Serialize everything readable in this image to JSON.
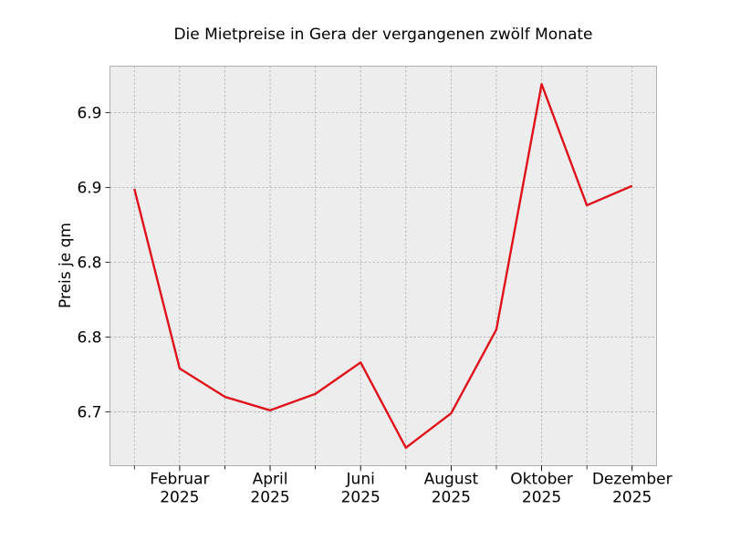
{
  "chart_data": {
    "type": "line",
    "title": "Die Mietpreise in Gera der vergangenen zwölf Monate",
    "xlabel": "",
    "ylabel": "Preis je qm",
    "x": [
      "2025-01",
      "2025-02",
      "2025-03",
      "2025-04",
      "2025-05",
      "2025-06",
      "2025-07",
      "2025-08",
      "2025-09",
      "2025-10",
      "2025-11",
      "2025-12"
    ],
    "series": [
      {
        "values": [
          6.849,
          6.729,
          6.71,
          6.701,
          6.712,
          6.733,
          6.676,
          6.699,
          6.755,
          6.919,
          6.838,
          6.851
        ],
        "color": "#e0111b"
      }
    ],
    "ylim": [
      6.664,
      6.931
    ],
    "yticks": [
      6.7,
      6.75,
      6.8,
      6.85,
      6.9
    ],
    "ytick_labels": [
      "6.7",
      "6.8",
      "6.8",
      "6.9",
      "6.9"
    ],
    "xticks": [
      {
        "x": "2025-02",
        "label": [
          "Februar",
          "2025"
        ]
      },
      {
        "x": "2025-04",
        "label": [
          "April",
          "2025"
        ]
      },
      {
        "x": "2025-06",
        "label": [
          "Juni",
          "2025"
        ]
      },
      {
        "x": "2025-08",
        "label": [
          "August",
          "2025"
        ]
      },
      {
        "x": "2025-10",
        "label": [
          "Oktober",
          "2025"
        ]
      },
      {
        "x": "2025-12",
        "label": [
          "Dezember",
          "2025"
        ]
      }
    ],
    "grid": true,
    "background": "#ededed"
  }
}
